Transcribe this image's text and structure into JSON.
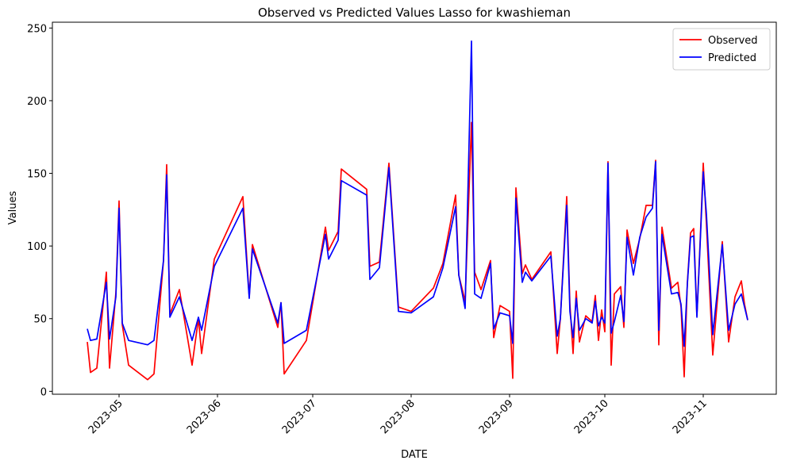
{
  "chart_data": {
    "type": "line",
    "title": "Observed vs Predicted Values Lasso for kwashieman",
    "x_label": "DATE",
    "y_label": "Values",
    "x": [
      "2023-04-21",
      "2023-04-22",
      "2023-04-24",
      "2023-04-27",
      "2023-04-28",
      "2023-04-30",
      "2023-05-01",
      "2023-05-02",
      "2023-05-04",
      "2023-05-10",
      "2023-05-12",
      "2023-05-15",
      "2023-05-16",
      "2023-05-17",
      "2023-05-20",
      "2023-05-24",
      "2023-05-26",
      "2023-05-27",
      "2023-05-31",
      "2023-06-09",
      "2023-06-11",
      "2023-06-12",
      "2023-06-20",
      "2023-06-21",
      "2023-06-22",
      "2023-06-29",
      "2023-07-05",
      "2023-07-06",
      "2023-07-09",
      "2023-07-10",
      "2023-07-18",
      "2023-07-19",
      "2023-07-22",
      "2023-07-25",
      "2023-07-28",
      "2023-08-01",
      "2023-08-08",
      "2023-08-11",
      "2023-08-15",
      "2023-08-16",
      "2023-08-18",
      "2023-08-20",
      "2023-08-21",
      "2023-08-23",
      "2023-08-26",
      "2023-08-27",
      "2023-08-29",
      "2023-09-01",
      "2023-09-02",
      "2023-09-03",
      "2023-09-05",
      "2023-09-06",
      "2023-09-08",
      "2023-09-14",
      "2023-09-16",
      "2023-09-17",
      "2023-09-19",
      "2023-09-20",
      "2023-09-21",
      "2023-09-22",
      "2023-09-23",
      "2023-09-25",
      "2023-09-27",
      "2023-09-28",
      "2023-09-29",
      "2023-09-30",
      "2023-10-01",
      "2023-10-02",
      "2023-10-03",
      "2023-10-04",
      "2023-10-06",
      "2023-10-07",
      "2023-10-08",
      "2023-10-10",
      "2023-10-12",
      "2023-10-14",
      "2023-10-16",
      "2023-10-17",
      "2023-10-18",
      "2023-10-19",
      "2023-10-22",
      "2023-10-24",
      "2023-10-25",
      "2023-10-26",
      "2023-10-27",
      "2023-10-28",
      "2023-10-29",
      "2023-10-30",
      "2023-10-31",
      "2023-11-01",
      "2023-11-02",
      "2023-11-04",
      "2023-11-07",
      "2023-11-09",
      "2023-11-11",
      "2023-11-13",
      "2023-11-14",
      "2023-11-15"
    ],
    "series": [
      {
        "name": "Observed",
        "color": "#ff0000",
        "values": [
          34,
          13,
          16,
          82,
          16,
          68,
          131,
          46,
          18,
          8,
          12,
          90,
          156,
          53,
          70,
          18,
          50,
          26,
          91,
          134,
          65,
          101,
          44,
          61,
          12,
          35,
          113,
          97,
          110,
          153,
          139,
          86,
          89,
          157,
          58,
          55,
          71,
          88,
          135,
          80,
          62,
          185,
          82,
          70,
          90,
          37,
          59,
          55,
          9,
          140,
          81,
          87,
          77,
          96,
          26,
          50,
          134,
          60,
          26,
          69,
          34,
          52,
          48,
          66,
          35,
          56,
          41,
          158,
          18,
          67,
          72,
          44,
          111,
          88,
          105,
          128,
          128,
          159,
          32,
          113,
          71,
          75,
          58,
          10,
          75,
          109,
          112,
          52,
          102,
          157,
          115,
          25,
          103,
          34,
          65,
          76,
          60,
          49
        ]
      },
      {
        "name": "Predicted",
        "color": "#0000ff",
        "values": [
          43,
          35,
          36,
          75,
          36,
          65,
          126,
          47,
          35,
          32,
          35,
          90,
          149,
          51,
          65,
          35,
          51,
          42,
          86,
          126,
          64,
          98,
          47,
          61,
          33,
          42,
          108,
          91,
          104,
          145,
          135,
          77,
          85,
          154,
          55,
          54,
          65,
          85,
          127,
          80,
          57,
          241,
          67,
          64,
          88,
          43,
          54,
          52,
          33,
          133,
          75,
          82,
          76,
          93,
          38,
          50,
          128,
          55,
          37,
          64,
          42,
          50,
          47,
          62,
          45,
          51,
          47,
          157,
          40,
          48,
          66,
          48,
          106,
          80,
          106,
          120,
          126,
          158,
          42,
          108,
          67,
          68,
          60,
          31,
          74,
          106,
          107,
          51,
          100,
          151,
          122,
          39,
          101,
          42,
          60,
          67,
          58,
          49
        ]
      }
    ],
    "xlim": [
      "2023-04-10",
      "2023-11-24"
    ],
    "xticks": [
      "2023-05",
      "2023-06",
      "2023-07",
      "2023-08",
      "2023-09",
      "2023-10",
      "2023-11"
    ],
    "ylim": [
      -2,
      254
    ],
    "yticks": [
      0,
      50,
      100,
      150,
      200,
      250
    ],
    "legend": "upper right"
  }
}
